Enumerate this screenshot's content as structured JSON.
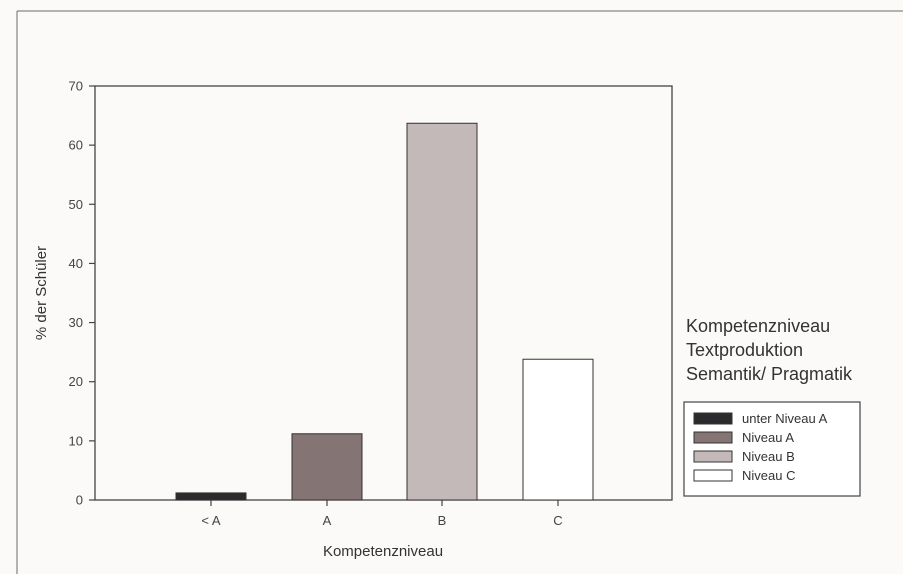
{
  "chart_data": {
    "type": "bar",
    "categories": [
      "< A",
      "A",
      "B",
      "C"
    ],
    "values": [
      1.2,
      11.2,
      63.7,
      23.8
    ],
    "bar_colors": [
      "#2b2a2c",
      "#847473",
      "#c4b9b9",
      "#ffffff"
    ],
    "xlabel": "Kompetenzniveau",
    "ylabel": "% der Schüler",
    "ylim": [
      0,
      70
    ],
    "yticks": [
      0,
      10,
      20,
      30,
      40,
      50,
      60,
      70
    ],
    "grid": false,
    "legend": {
      "placement": "right",
      "title_lines": [
        "Kompetenzniveau",
        "Textproduktion",
        "Semantik/ Pragmatik"
      ],
      "entries": [
        {
          "label": "unter Niveau A",
          "color": "#2b2a2c"
        },
        {
          "label": "Niveau A",
          "color": "#847473"
        },
        {
          "label": "Niveau B",
          "color": "#c4b9b9"
        },
        {
          "label": "Niveau C",
          "color": "#ffffff"
        }
      ]
    }
  }
}
